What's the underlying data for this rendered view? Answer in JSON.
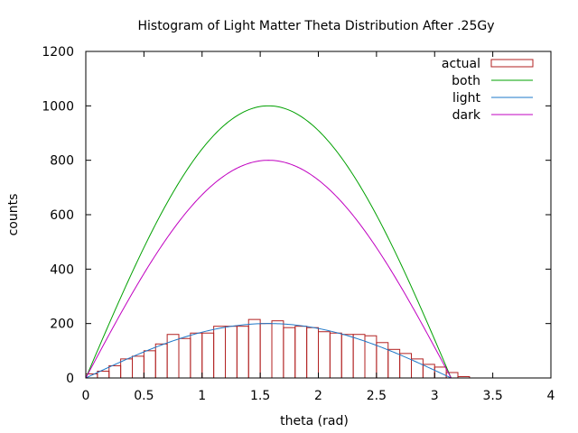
{
  "chart_data": {
    "type": "bar",
    "title": "Histogram of Light Matter Theta Distribution After .25Gy",
    "xlabel": "theta (rad)",
    "ylabel": "counts",
    "xlim": [
      0,
      4
    ],
    "ylim": [
      0,
      1200
    ],
    "xticks": [
      0,
      0.5,
      1,
      1.5,
      2,
      2.5,
      3,
      3.5,
      4
    ],
    "xtick_labels": [
      "0",
      "0.5",
      "1",
      "1.5",
      "2",
      "2.5",
      "3",
      "3.5",
      "4"
    ],
    "yticks": [
      0,
      200,
      400,
      600,
      800,
      1000,
      1200
    ],
    "ytick_labels": [
      "0",
      "200",
      "400",
      "600",
      "800",
      "1000",
      "1200"
    ],
    "grid": false,
    "legend_position": "top-right",
    "histogram": {
      "name": "actual",
      "color": "#b22222",
      "bin_width": 0.1,
      "bin_starts": [
        0.0,
        0.1,
        0.2,
        0.3,
        0.4,
        0.5,
        0.6,
        0.7,
        0.8,
        0.9,
        1.0,
        1.1,
        1.2,
        1.3,
        1.4,
        1.5,
        1.6,
        1.7,
        1.8,
        1.9,
        2.0,
        2.1,
        2.2,
        2.3,
        2.4,
        2.5,
        2.6,
        2.7,
        2.8,
        2.9,
        3.0,
        3.1,
        3.2
      ],
      "values": [
        15,
        25,
        45,
        70,
        80,
        100,
        125,
        160,
        145,
        165,
        165,
        190,
        190,
        190,
        215,
        200,
        210,
        185,
        190,
        185,
        170,
        165,
        160,
        160,
        155,
        130,
        105,
        90,
        70,
        50,
        40,
        20,
        5
      ]
    },
    "series": [
      {
        "name": "both",
        "color": "#00a000",
        "function": "amplitude*sin(x)",
        "amplitude": 1000,
        "domain": [
          0,
          3.14159
        ]
      },
      {
        "name": "light",
        "color": "#1e78c8",
        "function": "amplitude*sin(x)",
        "amplitude": 200,
        "domain": [
          0,
          3.14159
        ]
      },
      {
        "name": "dark",
        "color": "#c000c0",
        "function": "amplitude*sin(x)",
        "amplitude": 800,
        "domain": [
          0,
          3.14159
        ]
      }
    ]
  }
}
